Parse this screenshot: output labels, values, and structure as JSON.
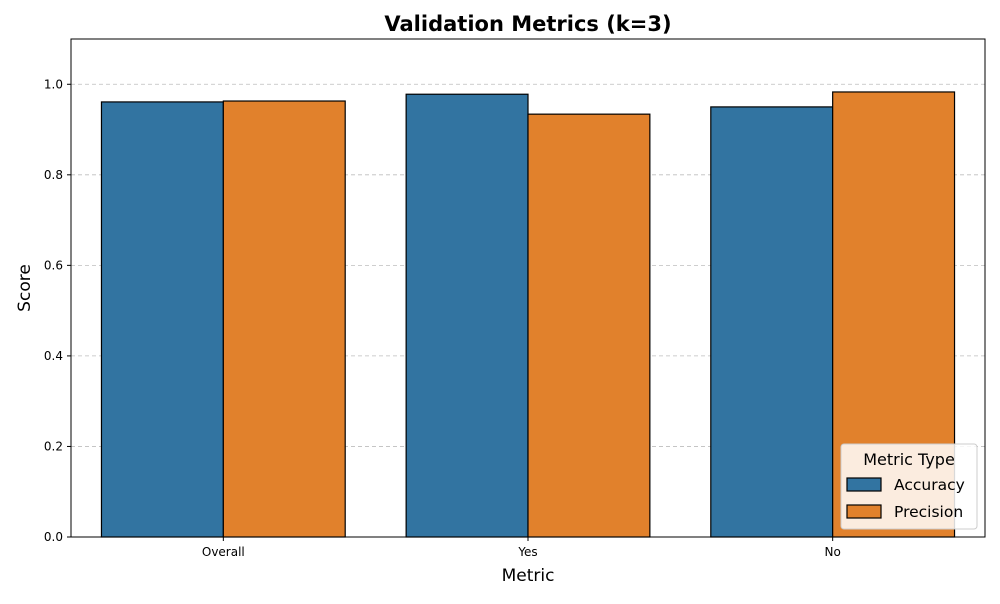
{
  "chart_data": {
    "type": "bar",
    "title": "Validation Metrics (k=3)",
    "xlabel": "Metric",
    "ylabel": "Score",
    "categories": [
      "Overall",
      "Yes",
      "No"
    ],
    "series": [
      {
        "name": "Accuracy",
        "color": "#3274a1",
        "values": [
          0.961,
          0.978,
          0.95
        ]
      },
      {
        "name": "Precision",
        "color": "#e1812c",
        "values": [
          0.963,
          0.934,
          0.983
        ]
      }
    ],
    "ylim": [
      0,
      1.1
    ],
    "yticks": [
      0.0,
      0.2,
      0.4,
      0.6,
      0.8,
      1.0
    ],
    "ytick_labels": [
      "0.0",
      "0.2",
      "0.4",
      "0.6",
      "0.8",
      "1.0"
    ],
    "grid": "y-dashed",
    "legend": {
      "title": "Metric Type",
      "placement": "lower-right"
    }
  }
}
